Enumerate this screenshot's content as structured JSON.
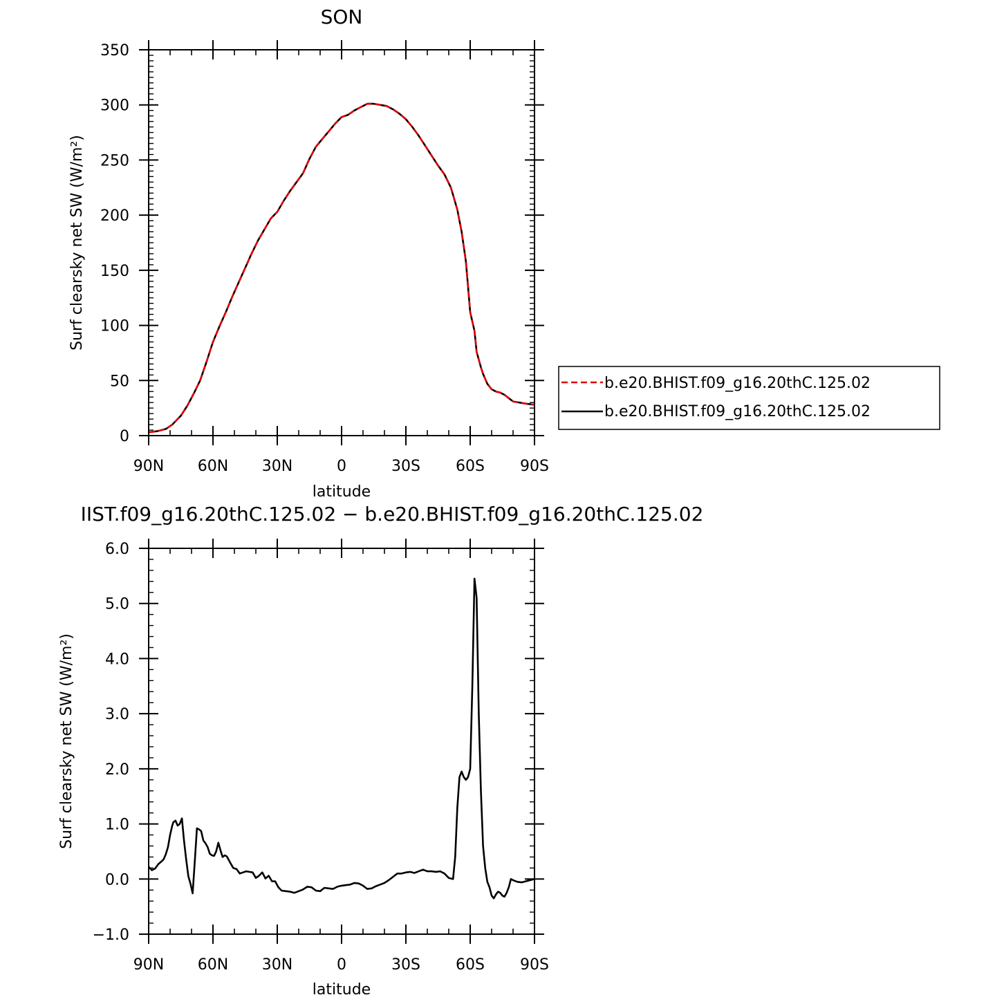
{
  "chart_data": [
    {
      "type": "line",
      "title": "SON",
      "xlabel": "latitude",
      "ylabel": "Surf clearsky net SW (W/m²)",
      "xlim": [
        90,
        -90
      ],
      "ylim": [
        0,
        350
      ],
      "xticks": [
        90,
        60,
        30,
        0,
        -30,
        -60,
        -90
      ],
      "xtick_labels": [
        "90N",
        "60N",
        "30N",
        "0",
        "30S",
        "60S",
        "90S"
      ],
      "yticks": [
        0,
        50,
        100,
        150,
        200,
        250,
        300,
        350
      ],
      "ytick_labels": [
        "0",
        "50",
        "100",
        "150",
        "200",
        "250",
        "300",
        "350"
      ],
      "legend": "right",
      "series": [
        {
          "name": "b.e20.BHIST.f09_g16.20thC.125.02",
          "color": "#e00000",
          "dash": "dashed",
          "x": [
            90,
            86,
            82,
            79,
            75,
            72,
            69,
            66,
            63,
            60,
            57,
            54,
            51,
            48,
            45,
            42,
            39,
            36,
            33,
            30,
            27,
            24,
            21,
            18,
            15,
            12,
            9,
            6,
            3,
            0,
            -3,
            -6,
            -9,
            -12,
            -15,
            -18,
            -21,
            -24,
            -27,
            -30,
            -33,
            -36,
            -39,
            -42,
            -45,
            -48,
            -51,
            -54,
            -56,
            -58,
            -60,
            -62,
            -63,
            -65,
            -66,
            -68,
            -70,
            -72,
            -74,
            -76,
            -78,
            -80,
            -83,
            -86,
            -90
          ],
          "y": [
            3,
            4,
            6,
            10,
            18,
            27,
            38,
            50,
            67,
            85,
            99,
            112,
            126,
            139,
            152,
            165,
            177,
            187,
            197,
            203,
            213,
            222,
            230,
            238,
            251,
            262,
            269,
            276,
            283,
            289,
            291,
            295,
            298,
            301,
            301,
            300,
            299,
            296,
            292,
            287,
            280,
            272,
            263,
            254,
            245,
            237,
            225,
            205,
            185,
            158,
            112,
            95,
            76,
            62,
            56,
            47,
            42,
            40,
            39,
            37,
            34,
            31,
            30,
            29,
            28
          ]
        },
        {
          "name": "b.e20.BHIST.f09_g16.20thC.125.02",
          "color": "#000000",
          "dash": "solid",
          "x": [
            90,
            86,
            82,
            79,
            75,
            72,
            69,
            66,
            63,
            60,
            57,
            54,
            51,
            48,
            45,
            42,
            39,
            36,
            33,
            30,
            27,
            24,
            21,
            18,
            15,
            12,
            9,
            6,
            3,
            0,
            -3,
            -6,
            -9,
            -12,
            -15,
            -18,
            -21,
            -24,
            -27,
            -30,
            -33,
            -36,
            -39,
            -42,
            -45,
            -48,
            -51,
            -54,
            -56,
            -58,
            -60,
            -62,
            -63,
            -65,
            -66,
            -68,
            -70,
            -72,
            -74,
            -76,
            -78,
            -80,
            -83,
            -86,
            -90
          ],
          "y": [
            3,
            4,
            6,
            10,
            18,
            27,
            38,
            50,
            67,
            85,
            99,
            112,
            126,
            139,
            152,
            165,
            177,
            187,
            197,
            203,
            213,
            222,
            230,
            238,
            251,
            262,
            269,
            276,
            283,
            289,
            291,
            295,
            298,
            301,
            301,
            300,
            299,
            296,
            292,
            287,
            280,
            272,
            263,
            254,
            245,
            237,
            225,
            205,
            185,
            158,
            112,
            95,
            76,
            62,
            56,
            47,
            42,
            40,
            39,
            37,
            34,
            31,
            30,
            29,
            28
          ]
        }
      ]
    },
    {
      "type": "line",
      "title": "IIST.f09_g16.20thC.125.02 − b.e20.BHIST.f09_g16.20thC.125.02",
      "xlabel": "latitude",
      "ylabel": "Surf clearsky net SW (W/m²)",
      "xlim": [
        90,
        -90
      ],
      "ylim": [
        -1,
        6
      ],
      "xticks": [
        90,
        60,
        30,
        0,
        -30,
        -60,
        -90
      ],
      "xtick_labels": [
        "90N",
        "60N",
        "30N",
        "0",
        "30S",
        "60S",
        "90S"
      ],
      "yticks": [
        -1,
        0,
        1,
        2,
        3,
        4,
        5,
        6
      ],
      "ytick_labels": [
        "−1.0",
        "0.0",
        "1.0",
        "2.0",
        "3.0",
        "4.0",
        "5.0",
        "6.0"
      ],
      "series": [
        {
          "color": "#000000",
          "dash": "solid",
          "x": [
            90,
            88.5,
            87,
            85.5,
            84,
            83,
            82,
            81,
            80,
            79,
            78.5,
            77.5,
            76.5,
            75.5,
            74.5,
            73.5,
            72.5,
            71.5,
            70.5,
            69.5,
            68.5,
            67.5,
            66.5,
            65.5,
            64.5,
            63.5,
            62.5,
            61.5,
            60.5,
            59.5,
            58.5,
            57.5,
            56.5,
            55.5,
            54.5,
            53.5,
            52,
            50.5,
            49,
            47.5,
            46,
            44.5,
            43,
            41.5,
            40,
            38.5,
            37,
            35.5,
            34,
            32.5,
            31,
            29.5,
            28,
            26,
            24,
            22,
            20,
            18,
            16,
            14,
            12,
            10,
            8,
            6,
            4,
            2,
            0,
            -2,
            -4,
            -6,
            -8,
            -10,
            -12,
            -14,
            -16,
            -18,
            -20,
            -22,
            -24,
            -26,
            -28,
            -30,
            -32,
            -34,
            -36,
            -38,
            -40,
            -42,
            -44,
            -46,
            -48,
            -50,
            -52,
            -53,
            -54,
            -55,
            -56,
            -57,
            -58,
            -59,
            -60,
            -61,
            -62,
            -63,
            -64,
            -65,
            -66,
            -67,
            -68,
            -69,
            -70,
            -71,
            -72,
            -73,
            -74,
            -75,
            -76,
            -77,
            -78,
            -79,
            -80,
            -82,
            -84,
            -86,
            -88,
            -90
          ],
          "y": [
            0.22,
            0.16,
            0.19,
            0.27,
            0.32,
            0.36,
            0.45,
            0.58,
            0.8,
            0.97,
            1.03,
            1.06,
            0.97,
            1.0,
            1.1,
            0.7,
            0.35,
            0.05,
            -0.08,
            -0.26,
            0.3,
            0.92,
            0.9,
            0.87,
            0.7,
            0.65,
            0.58,
            0.46,
            0.43,
            0.42,
            0.5,
            0.66,
            0.52,
            0.4,
            0.43,
            0.41,
            0.3,
            0.2,
            0.18,
            0.1,
            0.12,
            0.14,
            0.13,
            0.12,
            0.02,
            0.06,
            0.12,
            0.01,
            0.06,
            -0.04,
            -0.04,
            -0.15,
            -0.21,
            -0.22,
            -0.23,
            -0.25,
            -0.22,
            -0.19,
            -0.14,
            -0.15,
            -0.21,
            -0.22,
            -0.16,
            -0.17,
            -0.18,
            -0.14,
            -0.12,
            -0.11,
            -0.1,
            -0.07,
            -0.08,
            -0.12,
            -0.18,
            -0.17,
            -0.13,
            -0.1,
            -0.07,
            -0.02,
            0.04,
            0.1,
            0.1,
            0.12,
            0.13,
            0.11,
            0.14,
            0.17,
            0.14,
            0.14,
            0.13,
            0.14,
            0.1,
            0.02,
            0.0,
            0.4,
            1.3,
            1.85,
            1.95,
            1.85,
            1.8,
            1.85,
            2.0,
            3.5,
            5.45,
            5.1,
            3.0,
            1.6,
            0.6,
            0.2,
            -0.05,
            -0.15,
            -0.3,
            -0.35,
            -0.28,
            -0.23,
            -0.25,
            -0.3,
            -0.32,
            -0.25,
            -0.15,
            0.0,
            -0.02,
            -0.05,
            -0.06,
            -0.04,
            -0.02,
            0.0
          ]
        }
      ]
    }
  ]
}
